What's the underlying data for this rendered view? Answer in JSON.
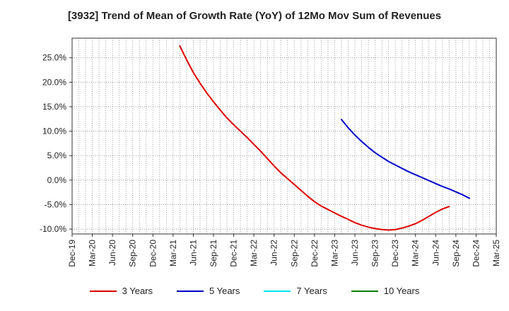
{
  "chart_data": {
    "type": "line",
    "title": "[3932]  Trend of Mean of Growth Rate (YoY) of 12Mo Mov Sum of Revenues",
    "xlabel": "",
    "ylabel": "",
    "ylim": [
      -11.0,
      29.0
    ],
    "y_ticks": [
      25.0,
      20.0,
      15.0,
      10.0,
      5.0,
      0.0,
      -5.0,
      -10.0
    ],
    "y_tick_labels": [
      "25.0%",
      "20.0%",
      "15.0%",
      "10.0%",
      "5.0%",
      "0.0%",
      "-5.0%",
      "-10.0%"
    ],
    "x_tick_labels": [
      "Dec-19",
      "Mar-20",
      "Jun-20",
      "Sep-20",
      "Dec-20",
      "Mar-21",
      "Jun-21",
      "Sep-21",
      "Dec-21",
      "Mar-22",
      "Jun-22",
      "Sep-22",
      "Dec-22",
      "Mar-23",
      "Jun-23",
      "Sep-23",
      "Dec-23",
      "Mar-24",
      "Jun-24",
      "Sep-24",
      "Dec-24",
      "Mar-25"
    ],
    "grid": true,
    "legend_position": "bottom",
    "series": [
      {
        "name": "3 Years",
        "color": "#dd0000",
        "points": [
          [
            16,
            27.4
          ],
          [
            17,
            24.6
          ],
          [
            18,
            22.0
          ],
          [
            19,
            19.8
          ],
          [
            20,
            17.8
          ],
          [
            21,
            16.0
          ],
          [
            22,
            14.3
          ],
          [
            23,
            12.7
          ],
          [
            24,
            11.3
          ],
          [
            25,
            10.0
          ],
          [
            26,
            8.7
          ],
          [
            27,
            7.3
          ],
          [
            28,
            5.9
          ],
          [
            29,
            4.4
          ],
          [
            30,
            2.9
          ],
          [
            31,
            1.5
          ],
          [
            32,
            0.3
          ],
          [
            33,
            -0.9
          ],
          [
            34,
            -2.1
          ],
          [
            35,
            -3.3
          ],
          [
            36,
            -4.4
          ],
          [
            37,
            -5.3
          ],
          [
            38,
            -6.0
          ],
          [
            39,
            -6.7
          ],
          [
            40,
            -7.4
          ],
          [
            41,
            -8.0
          ],
          [
            42,
            -8.7
          ],
          [
            43,
            -9.2
          ],
          [
            44,
            -9.6
          ],
          [
            45,
            -9.9
          ],
          [
            46,
            -10.1
          ],
          [
            47,
            -10.2
          ],
          [
            48,
            -10.1
          ],
          [
            49,
            -9.8
          ],
          [
            50,
            -9.4
          ],
          [
            51,
            -8.9
          ],
          [
            52,
            -8.2
          ],
          [
            53,
            -7.4
          ],
          [
            54,
            -6.6
          ],
          [
            55,
            -5.9
          ],
          [
            56,
            -5.4
          ]
        ]
      },
      {
        "name": "5 Years",
        "color": "#0000cc",
        "points": [
          [
            40,
            12.4
          ],
          [
            41,
            10.7
          ],
          [
            42,
            9.2
          ],
          [
            43,
            7.9
          ],
          [
            44,
            6.7
          ],
          [
            45,
            5.6
          ],
          [
            46,
            4.7
          ],
          [
            47,
            3.8
          ],
          [
            48,
            3.1
          ],
          [
            49,
            2.4
          ],
          [
            50,
            1.7
          ],
          [
            51,
            1.1
          ],
          [
            52,
            0.5
          ],
          [
            53,
            -0.1
          ],
          [
            54,
            -0.7
          ],
          [
            55,
            -1.3
          ],
          [
            56,
            -1.8
          ],
          [
            57,
            -2.4
          ],
          [
            58,
            -3.0
          ],
          [
            59,
            -3.7
          ]
        ]
      },
      {
        "name": "7 Years",
        "color": "#00e5ee",
        "points": []
      },
      {
        "name": "10 Years",
        "color": "#008000",
        "points": []
      }
    ]
  }
}
